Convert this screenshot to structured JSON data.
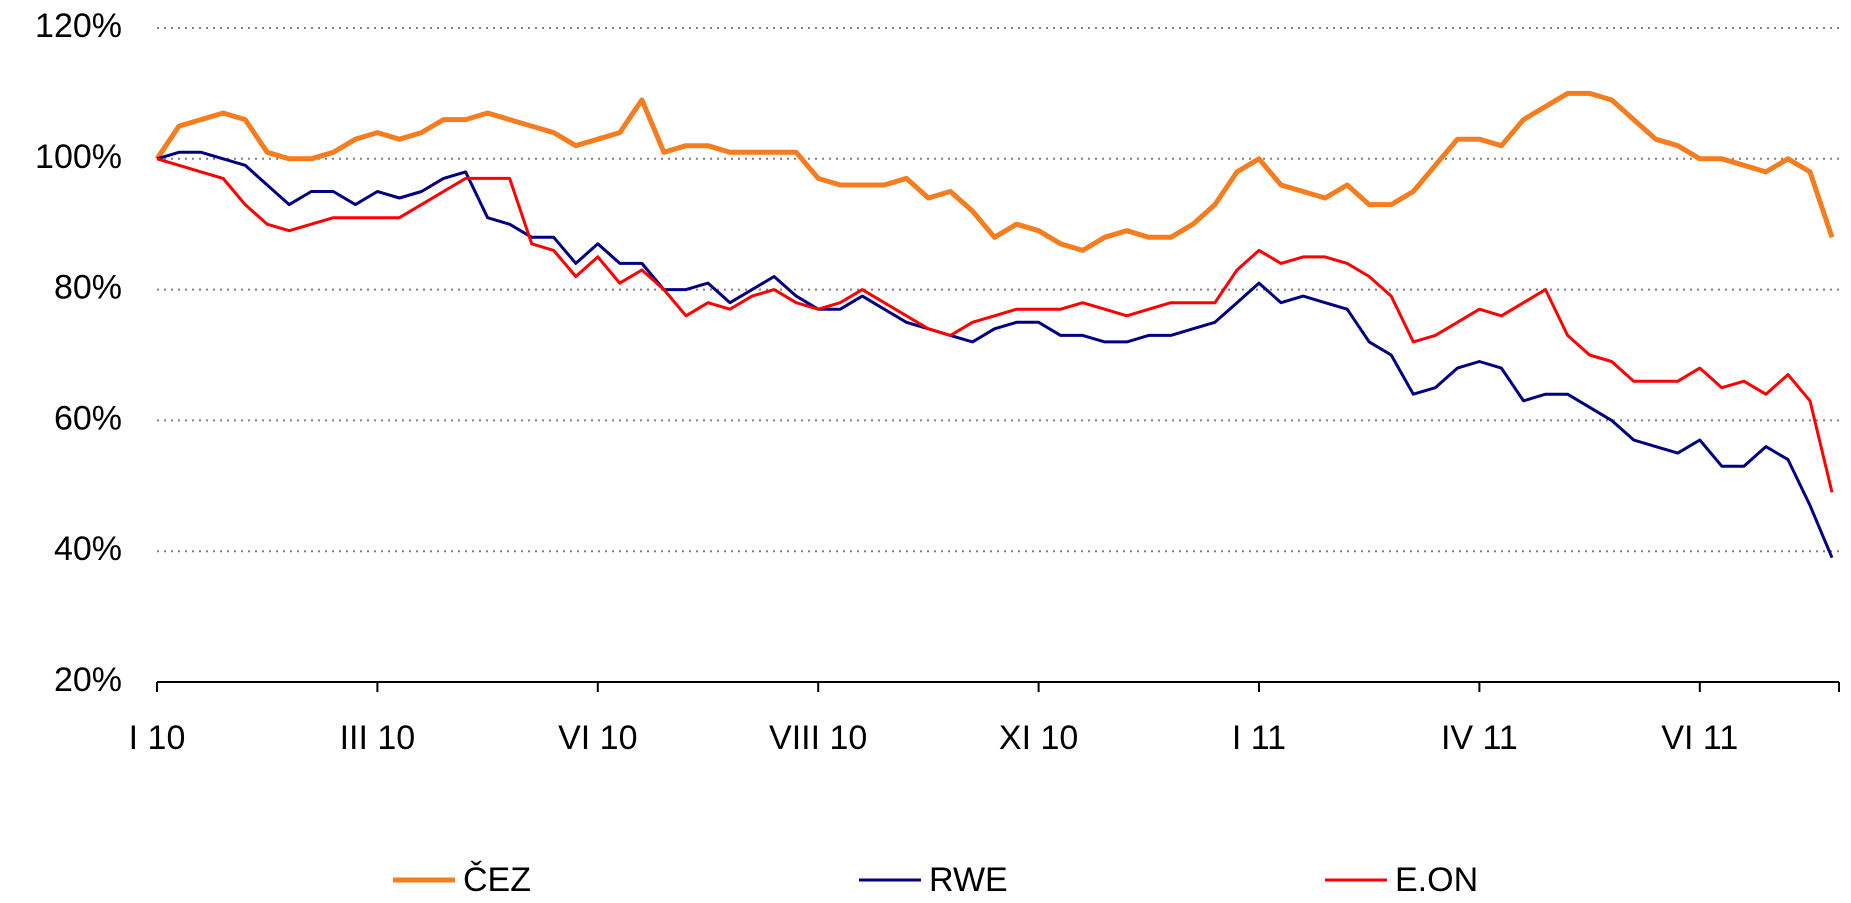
{
  "chart_data": {
    "type": "line",
    "categories": [
      "I 10",
      null,
      null,
      null,
      null,
      null,
      null,
      null,
      null,
      null,
      "III 10",
      null,
      null,
      null,
      null,
      null,
      null,
      null,
      null,
      null,
      "VI 10",
      null,
      null,
      null,
      null,
      null,
      null,
      null,
      null,
      null,
      "VIII 10",
      null,
      null,
      null,
      null,
      null,
      null,
      null,
      null,
      null,
      "XI 10",
      null,
      null,
      null,
      null,
      null,
      null,
      null,
      null,
      null,
      "I 11",
      null,
      null,
      null,
      null,
      null,
      null,
      null,
      null,
      null,
      "IV 11",
      null,
      null,
      null,
      null,
      null,
      null,
      null,
      null,
      null,
      "VI 11",
      null,
      null,
      null,
      null,
      null,
      null
    ],
    "series": [
      {
        "name": "ČEZ",
        "color": "#f57c1f",
        "values": [
          100,
          105,
          106,
          107,
          106,
          101,
          100,
          100,
          101,
          103,
          104,
          103,
          104,
          106,
          106,
          107,
          106,
          105,
          104,
          102,
          103,
          104,
          109,
          101,
          102,
          102,
          101,
          101,
          101,
          101,
          97,
          96,
          96,
          96,
          97,
          94,
          95,
          92,
          88,
          90,
          89,
          87,
          86,
          88,
          89,
          88,
          88,
          90,
          93,
          98,
          100,
          96,
          95,
          94,
          96,
          93,
          93,
          95,
          99,
          103,
          103,
          102,
          106,
          108,
          110,
          110,
          109,
          106,
          103,
          102,
          100,
          100,
          99,
          98,
          100,
          98,
          88
        ]
      },
      {
        "name": "RWE",
        "color": "#000080",
        "values": [
          100,
          101,
          101,
          100,
          99,
          96,
          93,
          95,
          95,
          93,
          95,
          94,
          95,
          97,
          98,
          91,
          90,
          88,
          88,
          84,
          87,
          84,
          84,
          80,
          80,
          81,
          78,
          80,
          82,
          79,
          77,
          77,
          79,
          77,
          75,
          74,
          73,
          72,
          74,
          75,
          75,
          73,
          73,
          72,
          72,
          73,
          73,
          74,
          75,
          78,
          81,
          78,
          79,
          78,
          77,
          72,
          70,
          64,
          65,
          68,
          69,
          68,
          63,
          64,
          64,
          62,
          60,
          57,
          56,
          55,
          57,
          53,
          53,
          56,
          54,
          47,
          39
        ]
      },
      {
        "name": "E.ON",
        "color": "#ff0000",
        "values": [
          100,
          99,
          98,
          97,
          93,
          90,
          89,
          90,
          91,
          91,
          91,
          91,
          93,
          95,
          97,
          97,
          97,
          87,
          86,
          82,
          85,
          81,
          83,
          80,
          76,
          78,
          77,
          79,
          80,
          78,
          77,
          78,
          80,
          78,
          76,
          74,
          73,
          75,
          76,
          77,
          77,
          77,
          78,
          77,
          76,
          77,
          78,
          78,
          78,
          83,
          86,
          84,
          85,
          85,
          84,
          82,
          79,
          72,
          73,
          75,
          77,
          76,
          78,
          80,
          73,
          70,
          69,
          66,
          66,
          66,
          68,
          65,
          66,
          64,
          67,
          63,
          49
        ]
      }
    ],
    "ylim": [
      20,
      120
    ],
    "yticks": [
      {
        "value": 20,
        "label": "20%"
      },
      {
        "value": 40,
        "label": "40%"
      },
      {
        "value": 60,
        "label": "60%"
      },
      {
        "value": 80,
        "label": "80%"
      },
      {
        "value": 100,
        "label": "100%"
      },
      {
        "value": 120,
        "label": "120%"
      }
    ],
    "grid": true
  }
}
